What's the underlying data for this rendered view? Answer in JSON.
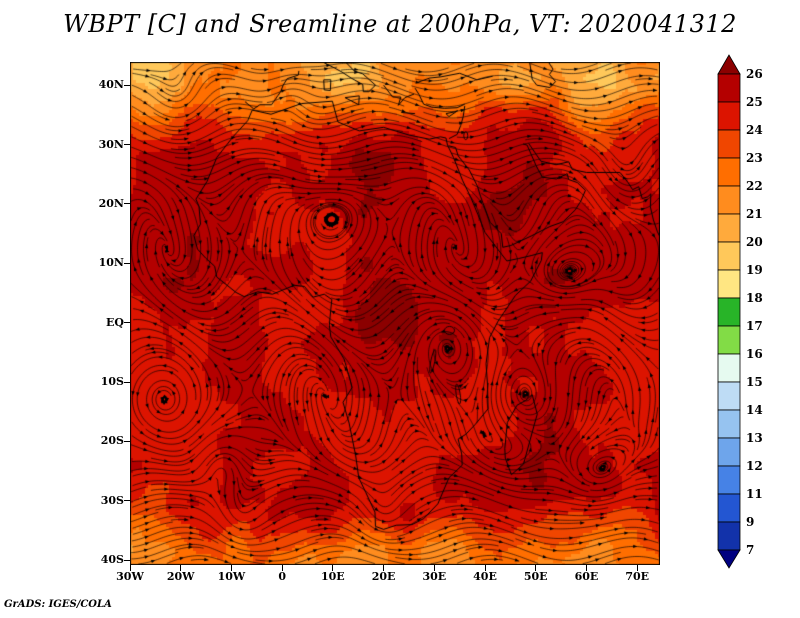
{
  "credit": "GrADS: IGES/COLA",
  "chart_data": {
    "type": "heatmap",
    "title": "WBPT [C] and Sreamline at 200hPa, VT: 2020041312",
    "variable": "WBPT",
    "units": "C",
    "level": "200hPa",
    "valid_time": "2020041312",
    "overlay": "streamlines",
    "x_axis": {
      "tick_labels": [
        "30W",
        "20W",
        "10W",
        "0",
        "10E",
        "20E",
        "30E",
        "40E",
        "50E",
        "60E",
        "70E"
      ],
      "tick_lons": [
        -30,
        -20,
        -10,
        0,
        10,
        20,
        30,
        40,
        50,
        60,
        70
      ],
      "lon_min": -30,
      "lon_max": 74.5
    },
    "y_axis": {
      "tick_labels": [
        "40N",
        "30N",
        "20N",
        "10N",
        "EQ",
        "10S",
        "20S",
        "30S",
        "40S"
      ],
      "tick_lats": [
        40,
        30,
        20,
        10,
        0,
        -10,
        -20,
        -30,
        -40
      ],
      "lat_min": -40.8,
      "lat_max": 43.9
    },
    "colorbar": {
      "labels_top_to_bottom": [
        "26",
        "25",
        "24",
        "23",
        "22",
        "21",
        "20",
        "19",
        "18",
        "17",
        "16",
        "15",
        "14",
        "13",
        "12",
        "11",
        "9",
        "7"
      ],
      "levels_ascending": [
        7,
        9,
        11,
        12,
        13,
        14,
        15,
        16,
        17,
        18,
        19,
        20,
        21,
        22,
        23,
        24,
        25,
        26
      ],
      "colors_top_to_bottom": [
        "#8b0000",
        "#b40000",
        "#dc1400",
        "#f04600",
        "#ff6e00",
        "#ff8c1e",
        "#ffaa3c",
        "#ffc85a",
        "#ffe682",
        "#28b428",
        "#82dc46",
        "#e6faf0",
        "#bedcf5",
        "#96c3f0",
        "#6ea5eb",
        "#4682e6",
        "#2356d2",
        "#1232aa",
        "#000080"
      ]
    }
  }
}
